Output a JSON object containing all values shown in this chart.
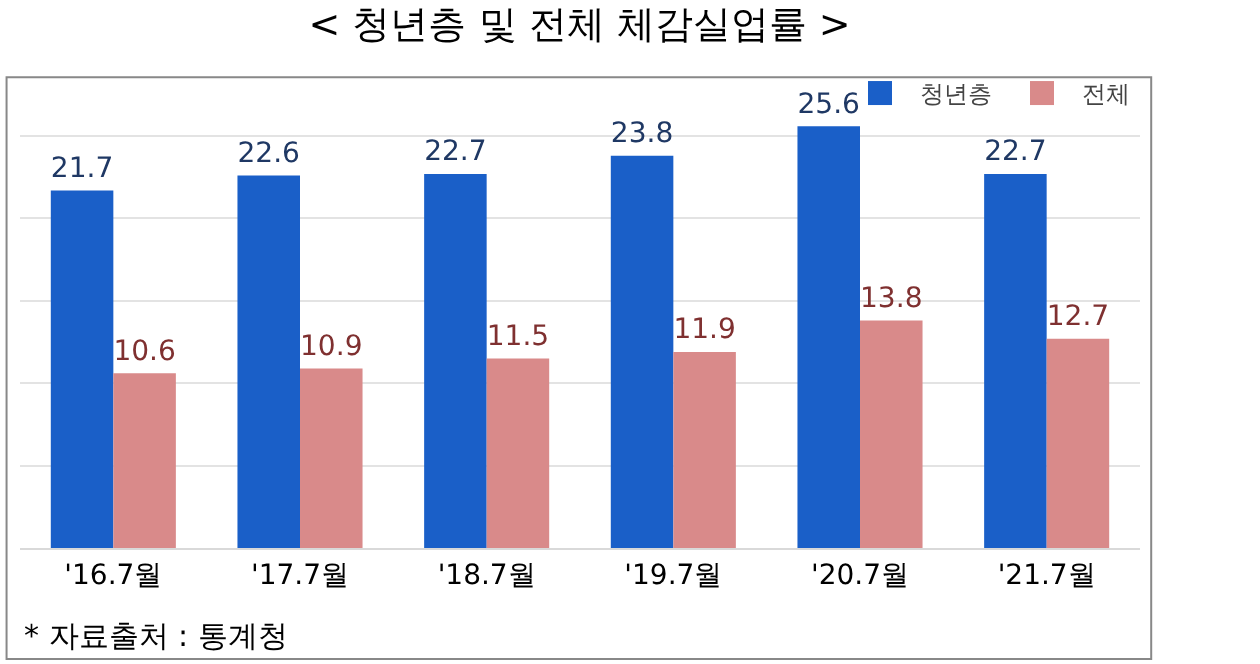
{
  "chart_data": {
    "type": "bar",
    "title": "< 청년층 및 전체 체감실업률 >",
    "categories": [
      "'16.7월",
      "'17.7월",
      "'18.7월",
      "'19.7월",
      "'20.7월",
      "'21.7월"
    ],
    "series": [
      {
        "name": "청년층",
        "color": "#1a5fc8",
        "values": [
          21.7,
          22.6,
          22.7,
          23.8,
          25.6,
          22.7
        ]
      },
      {
        "name": "전체",
        "color": "#d98a8a",
        "values": [
          10.6,
          10.9,
          11.5,
          11.9,
          13.8,
          12.7
        ]
      }
    ],
    "data_labels": true,
    "yticks": [
      {
        "value": 0,
        "label": null
      },
      {
        "value": 5,
        "label": null
      },
      {
        "value": 10,
        "label": null
      },
      {
        "value": 15,
        "label": null
      },
      {
        "value": 20,
        "label": null
      },
      {
        "value": 25,
        "label": null
      }
    ],
    "grid": "y",
    "legend": "top right",
    "tick_labels": "x",
    "annotations": [
      "* 자료출처 : 통계청"
    ]
  }
}
